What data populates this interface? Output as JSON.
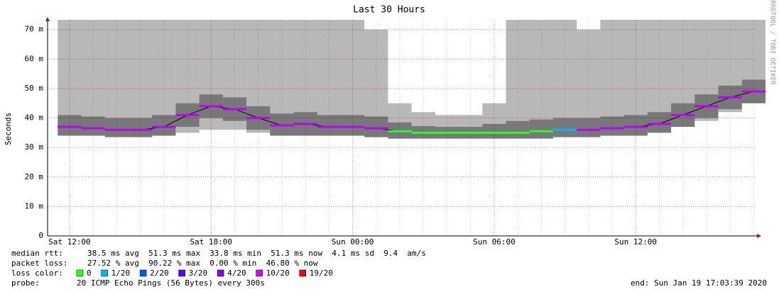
{
  "chart_data": {
    "type": "smokeping",
    "title": "Last 30 Hours",
    "y_label": "Seconds",
    "side_text": "RRDTOOL / TOBI OETIKER",
    "categories": [
      "Sat 12:00",
      null,
      null,
      null,
      null,
      null,
      "Sat 18:00",
      null,
      null,
      null,
      null,
      null,
      "Sun 00:00",
      null,
      null,
      null,
      null,
      null,
      "Sun 06:00",
      null,
      null,
      null,
      null,
      null,
      "Sun 12:00",
      null,
      null,
      null,
      null,
      null
    ],
    "ylim": [
      0,
      0.0733
    ],
    "yticks": [
      0,
      {
        "value": 0.01,
        "label": "10 m"
      },
      {
        "value": 0.02,
        "label": "20 m"
      },
      {
        "value": 0.03,
        "label": "30 m"
      },
      {
        "value": 0.04,
        "label": "40 m"
      },
      {
        "value": 0.05,
        "label": "50 m"
      },
      {
        "value": 0.06,
        "label": "60 m"
      },
      {
        "value": 0.07,
        "label": "70 m"
      }
    ],
    "grid": true,
    "smoke_low": [
      0.034,
      0.034,
      0.0335,
      0.0335,
      0.034,
      0.035,
      0.036,
      0.036,
      0.035,
      0.034,
      0.034,
      0.034,
      0.034,
      0.0335,
      0.033,
      0.033,
      0.033,
      0.033,
      0.033,
      0.033,
      0.033,
      0.0335,
      0.0335,
      0.034,
      0.034,
      0.035,
      0.037,
      0.039,
      0.042,
      0.045
    ],
    "smoke_high": [
      0.0733,
      0.0733,
      0.0733,
      0.0733,
      0.0733,
      0.0733,
      0.0733,
      0.0733,
      0.0733,
      0.0733,
      0.0733,
      0.0733,
      0.0733,
      0.07,
      0.045,
      0.042,
      0.041,
      0.041,
      0.045,
      0.0733,
      0.0733,
      0.0733,
      0.07,
      0.0733,
      0.0733,
      0.0733,
      0.0733,
      0.0733,
      0.0733,
      0.0733
    ],
    "series": [
      {
        "name": "median rtt",
        "line_color": "#000000",
        "values": [
          0.037,
          0.0365,
          0.036,
          0.036,
          0.037,
          0.041,
          0.044,
          0.043,
          0.04,
          0.0375,
          0.038,
          0.037,
          0.037,
          0.0365,
          0.0355,
          0.035,
          0.035,
          0.035,
          0.035,
          0.035,
          0.0355,
          0.036,
          0.036,
          0.0365,
          0.037,
          0.038,
          0.041,
          0.044,
          0.047,
          0.049
        ],
        "colors": [
          "#c000ff",
          "#c000ff",
          "#c000ff",
          "#c000ff",
          "#c000ff",
          "#c000ff",
          "#c000ff",
          "#c000ff",
          "#c000ff",
          "#c000ff",
          "#c000ff",
          "#c000ff",
          "#c000ff",
          "#c000ff",
          "#26ff26",
          "#26ff26",
          "#26ff26",
          "#26ff26",
          "#26ff26",
          "#26ff26",
          "#26ff26",
          "#00b8ff",
          "#c000ff",
          "#c000ff",
          "#c000ff",
          "#c000ff",
          "#c000ff",
          "#c000ff",
          "#c000ff",
          "#c000ff"
        ]
      }
    ],
    "loss_title": "loss color:",
    "loss_colors": [
      {
        "label": "0",
        "color": "#26ff26"
      },
      {
        "label": "1/20",
        "color": "#00b8ff"
      },
      {
        "label": "2/20",
        "color": "#0059ff"
      },
      {
        "label": "3/20",
        "color": "#5e00ff"
      },
      {
        "label": "4/20",
        "color": "#7e00ff"
      },
      {
        "label": "10/20",
        "color": "#dd00ff"
      },
      {
        "label": "19/20",
        "color": "#ff0000"
      }
    ],
    "stats": [
      {
        "label": "median rtt:",
        "text": "38.5 ms avg  51.3 ms max  33.8 ms min  51.3 ms now  4.1 ms sd  9.4  am/s"
      },
      {
        "label": "packet loss:",
        "text": "27.52 % avg  90.22 % max  0.00 % min  46.80 % now"
      }
    ],
    "probe_label": "probe:",
    "probe_text": "20 ICMP Echo Pings (56 Bytes) every 300s",
    "end_text": "end: Sun Jan 19 17:03:39 2020"
  }
}
